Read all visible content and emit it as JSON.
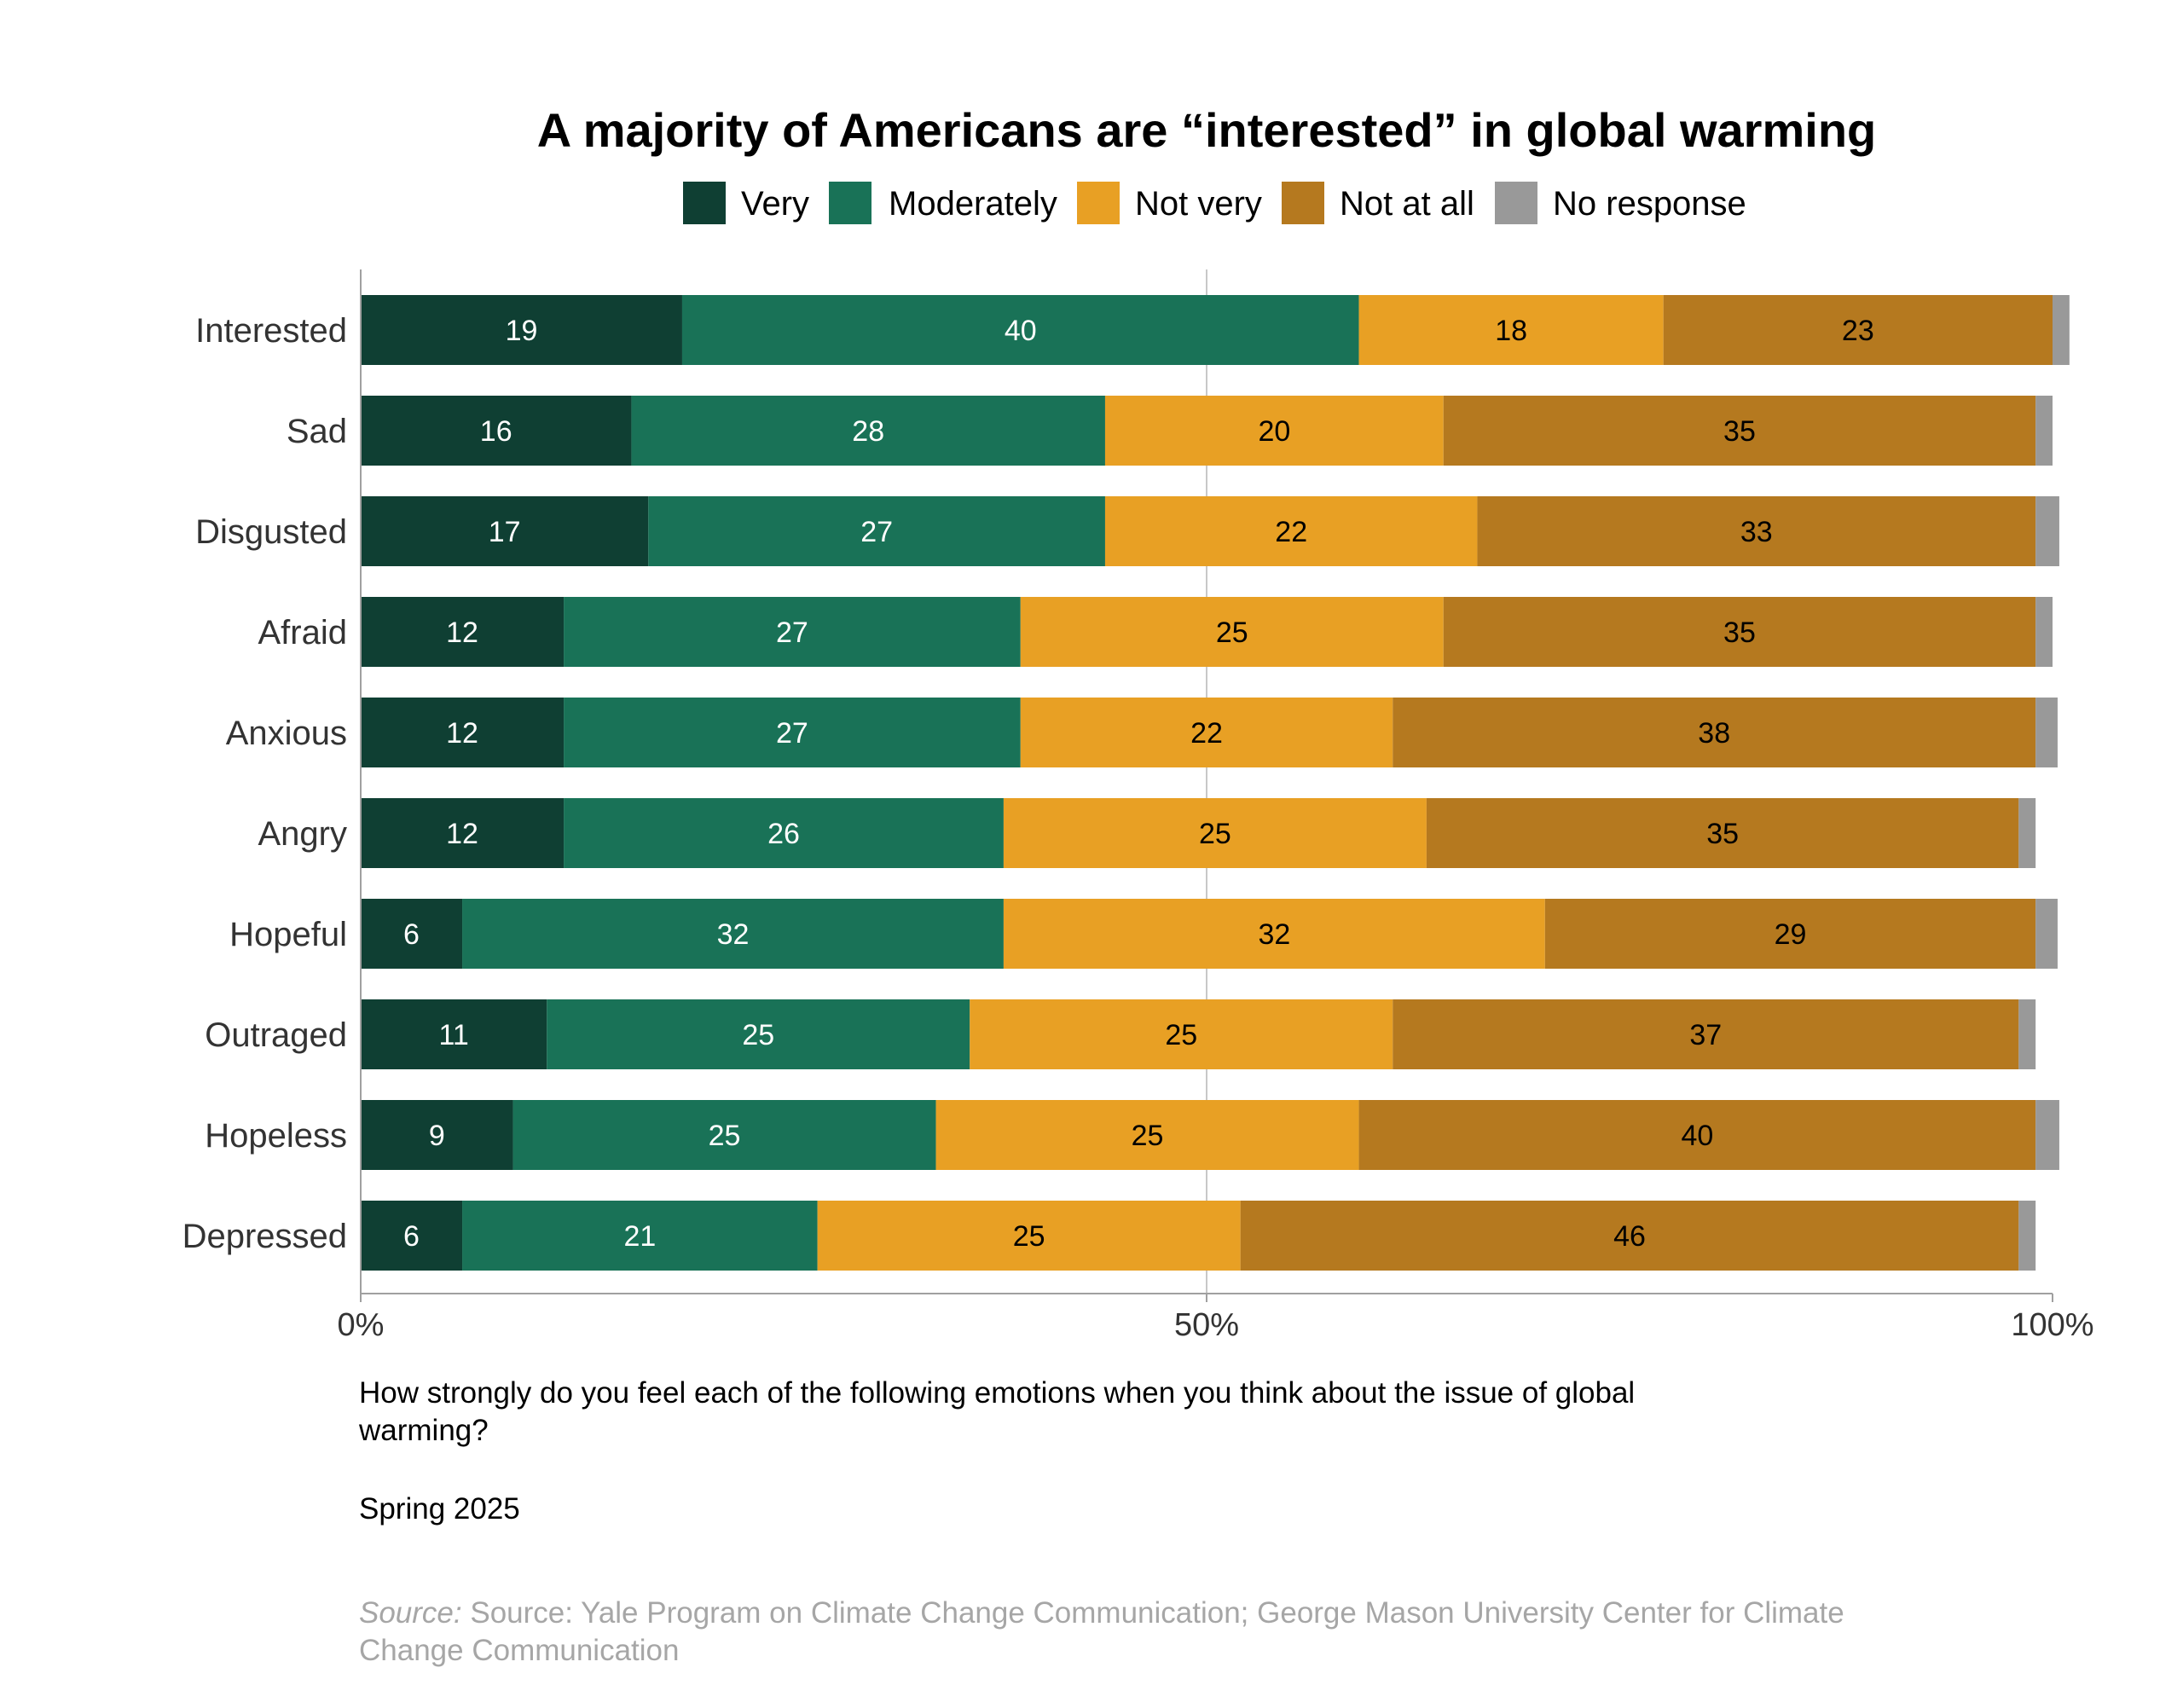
{
  "chart_data": {
    "type": "bar",
    "orientation": "horizontal",
    "stacked": true,
    "title": "A majority of Americans are “interested” in global warming",
    "categories": [
      "Interested",
      "Sad",
      "Disgusted",
      "Afraid",
      "Anxious",
      "Angry",
      "Hopeful",
      "Outraged",
      "Hopeless",
      "Depressed"
    ],
    "series": [
      {
        "name": "Very",
        "color": "#0f3f33",
        "label_color": "#ffffff",
        "values": [
          19,
          16,
          17,
          12,
          12,
          12,
          6,
          11,
          9,
          6
        ]
      },
      {
        "name": "Moderately",
        "color": "#197257",
        "label_color": "#ffffff",
        "values": [
          40,
          28,
          27,
          27,
          27,
          26,
          32,
          25,
          25,
          21
        ]
      },
      {
        "name": "Not very",
        "color": "#e8a024",
        "label_color": "#000000",
        "values": [
          18,
          20,
          22,
          25,
          22,
          25,
          32,
          25,
          25,
          25
        ]
      },
      {
        "name": "Not at all",
        "color": "#b5791f",
        "label_color": "#000000",
        "values": [
          23,
          35,
          33,
          35,
          38,
          35,
          29,
          37,
          40,
          46
        ]
      },
      {
        "name": "No response",
        "color": "#999999",
        "label_color": "#000000",
        "values": [
          1,
          1,
          1.4,
          1,
          1.3,
          1,
          1.3,
          1,
          1.4,
          1
        ]
      }
    ],
    "labeled_series": [
      "Very",
      "Moderately",
      "Not very",
      "Not at all"
    ],
    "x_ticks": [
      0,
      50,
      100
    ],
    "x_tick_labels": [
      "0%",
      "50%",
      "100%"
    ],
    "xlim": [
      0,
      100
    ],
    "grid": "vertical",
    "legend": "top-center"
  },
  "notes": {
    "question": "How strongly do you feel each of the following emotions when you think about the issue of global warming?",
    "period": "Spring 2025",
    "source_label": "Source:",
    "source_text": "Source: Yale Program on Climate Change Communication; George Mason University Center for Climate Change Communication"
  }
}
